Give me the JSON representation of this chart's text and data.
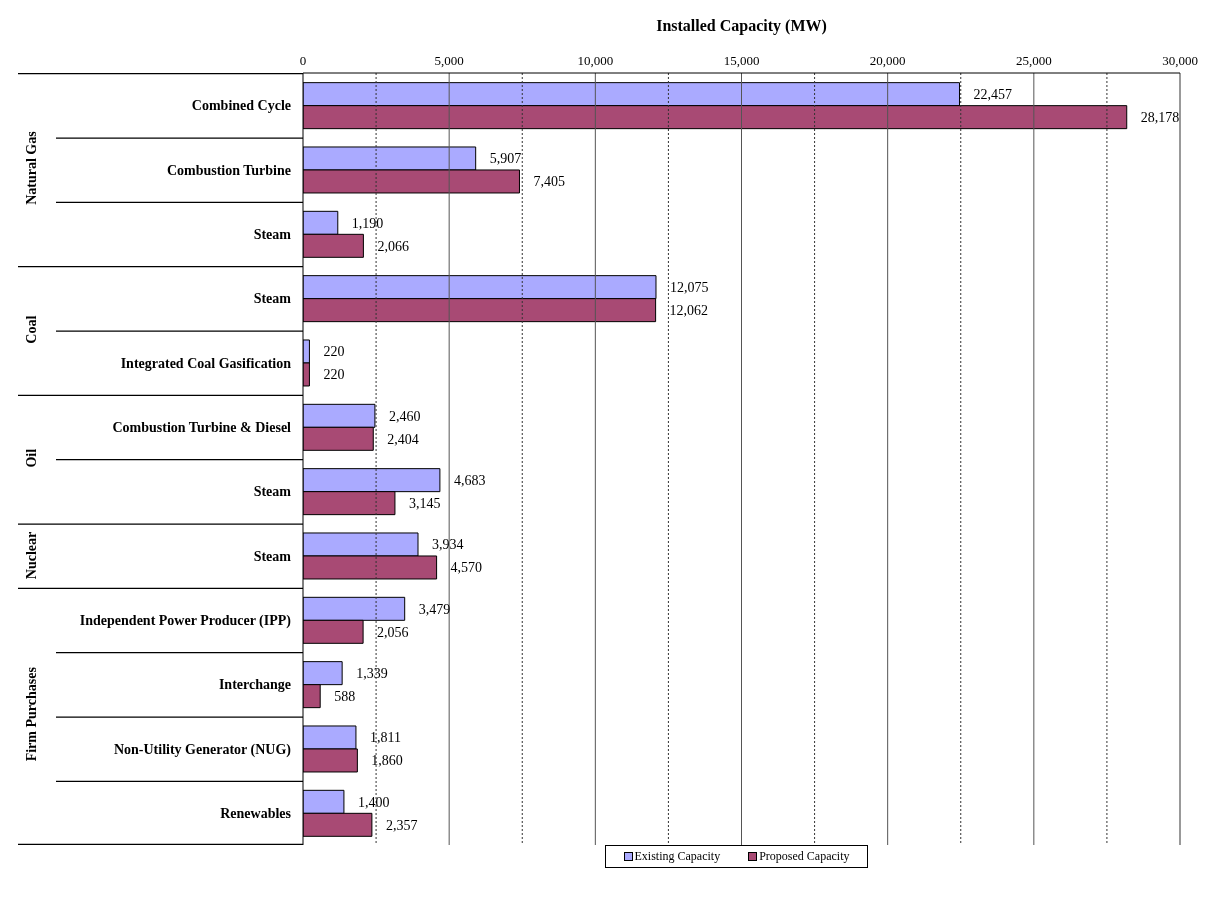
{
  "chart_data": {
    "type": "bar",
    "orientation": "horizontal",
    "xlabel": "Installed Capacity (MW)",
    "categories": [
      "Combined Cycle",
      "Combustion Turbine",
      "Steam",
      "Steam",
      "Integrated Coal Gasification",
      "Combustion Turbine & Diesel",
      "Steam",
      "Steam",
      "Independent Power Producer (IPP)",
      "Interchange",
      "Non-Utility Generator (NUG)",
      "Renewables"
    ],
    "series": [
      {
        "name": "Existing Capacity",
        "color": "#aaaaff",
        "values": [
          22457,
          5907,
          1190,
          12075,
          220,
          2460,
          4683,
          3934,
          3479,
          1339,
          1811,
          1400
        ],
        "value_labels": [
          "22,457",
          "5,907",
          "1,190",
          "12,075",
          "220",
          "2,460",
          "4,683",
          "3,934",
          "3,479",
          "1,339",
          "1,811",
          "1,400"
        ]
      },
      {
        "name": "Proposed Capacity",
        "color": "#a84a74",
        "values": [
          28178,
          7405,
          2066,
          12062,
          220,
          2404,
          3145,
          4570,
          2056,
          588,
          1860,
          2357
        ],
        "value_labels": [
          "28,178",
          "7,405",
          "2,066",
          "12,062",
          "220",
          "2,404",
          "3,145",
          "4,570",
          "2,056",
          "588",
          "1,860",
          "2,357"
        ]
      }
    ],
    "xlim": [
      0,
      30000
    ],
    "xticks": [
      {
        "value": 0,
        "label": "0"
      },
      {
        "value": 2500,
        "label": null
      },
      {
        "value": 5000,
        "label": "5,000"
      },
      {
        "value": 7500,
        "label": null
      },
      {
        "value": 10000,
        "label": "10,000"
      },
      {
        "value": 12500,
        "label": null
      },
      {
        "value": 15000,
        "label": "15,000"
      },
      {
        "value": 17500,
        "label": null
      },
      {
        "value": 20000,
        "label": "20,000"
      },
      {
        "value": 22500,
        "label": null
      },
      {
        "value": 25000,
        "label": "25,000"
      },
      {
        "value": 27500,
        "label": null
      },
      {
        "value": 30000,
        "label": "30,000"
      }
    ],
    "annotations": [
      "Natural Gas",
      "Coal",
      "Oil",
      "Nuclear",
      "Firm Purchases"
    ],
    "grid": "x",
    "legend": "bottom"
  }
}
